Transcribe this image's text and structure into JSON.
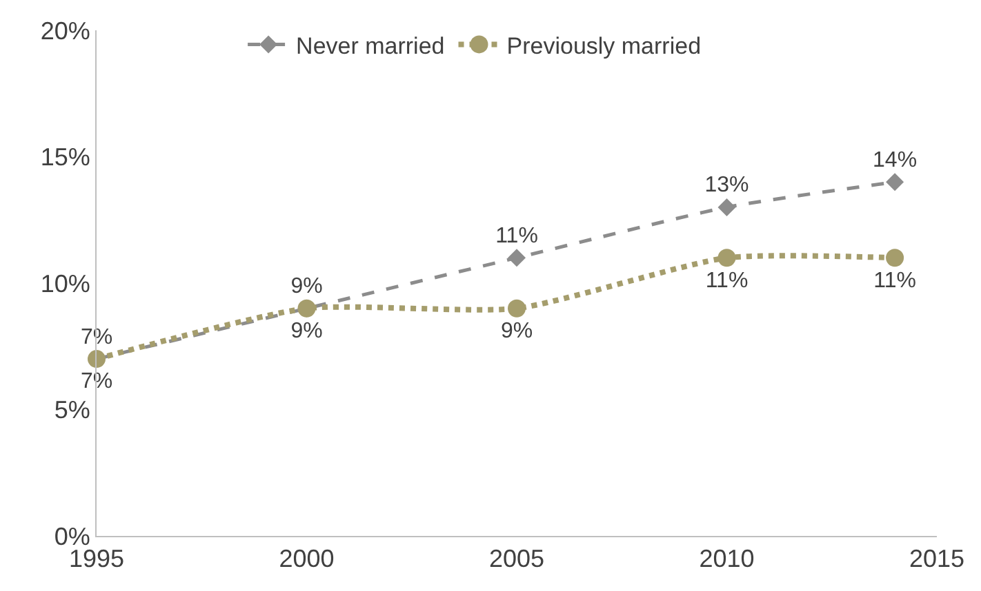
{
  "chart_data": {
    "type": "line",
    "x": [
      1995,
      2000,
      2005,
      2010,
      2014
    ],
    "series": [
      {
        "name": "Never married",
        "color": "#8c8c8c",
        "values": [
          7,
          9,
          11,
          13,
          14
        ],
        "value_labels": [
          "7%",
          "9%",
          "11%",
          "13%",
          "14%"
        ],
        "marker": "diamond",
        "line_style": "dashed"
      },
      {
        "name": "Previously married",
        "color": "#a59d6c",
        "values": [
          7,
          9,
          9,
          11,
          11
        ],
        "value_labels": [
          "7%",
          "9%",
          "9%",
          "11%",
          "11%"
        ],
        "marker": "circle",
        "line_style": "dotted"
      }
    ],
    "xlim": [
      1995,
      2015
    ],
    "xticks": [
      1995,
      2000,
      2005,
      2010,
      2015
    ],
    "ylim": [
      0,
      20
    ],
    "yticks": [
      {
        "value": 0,
        "label": "0%"
      },
      {
        "value": 5,
        "label": "5%"
      },
      {
        "value": 10,
        "label": "10%"
      },
      {
        "value": 15,
        "label": "15%"
      },
      {
        "value": 20,
        "label": "20%"
      }
    ],
    "legend": "top"
  }
}
